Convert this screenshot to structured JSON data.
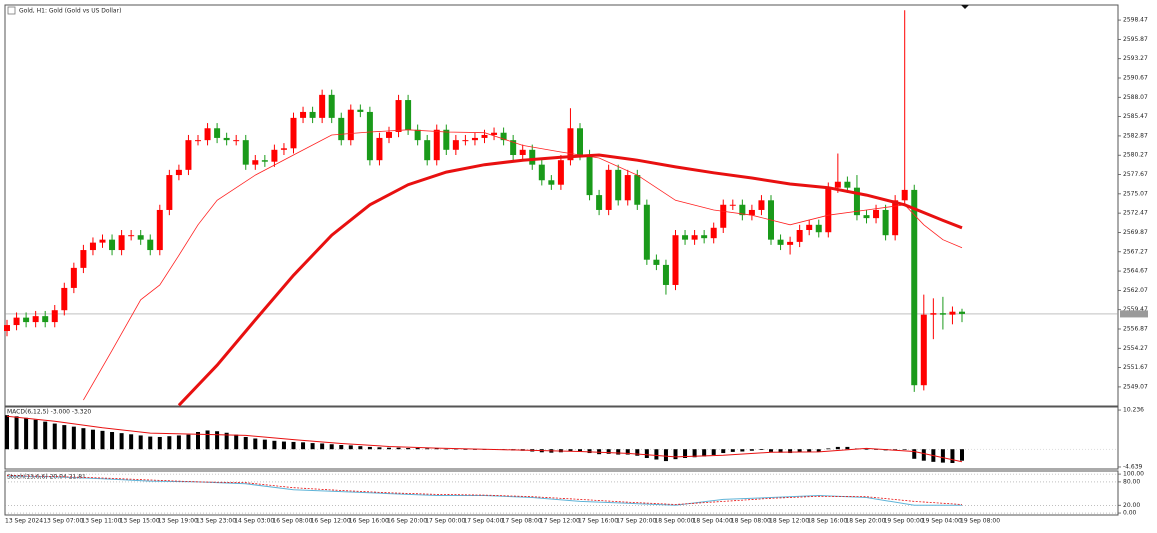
{
  "chart_data": [
    {
      "type": "candlestick",
      "title": "Gold, H1: Gold (Gold vs US Dollar)",
      "up_color": "#ff0000",
      "down_color": "#1a9a1a",
      "grid": false,
      "categories": [
        "13 Sep 2024",
        null,
        null,
        null,
        "13 Sep 07:00",
        null,
        null,
        null,
        "13 Sep 11:00",
        null,
        null,
        null,
        "13 Sep 15:00",
        null,
        null,
        null,
        "13 Sep 19:00",
        null,
        null,
        null,
        "13 Sep 23:00",
        null,
        null,
        null,
        "14 Sep 03:00",
        null,
        null,
        null,
        "16 Sep 08:00",
        null,
        null,
        null,
        "16 Sep 12:00",
        null,
        null,
        null,
        "16 Sep 16:00",
        null,
        null,
        null,
        "16 Sep 20:00",
        null,
        null,
        null,
        "17 Sep 00:00",
        null,
        null,
        null,
        "17 Sep 04:00",
        null,
        null,
        null,
        "17 Sep 08:00",
        null,
        null,
        null,
        "17 Sep 12:00",
        null,
        null,
        null,
        "17 Sep 16:00",
        null,
        null,
        null,
        "17 Sep 20:00",
        null,
        null,
        null,
        "18 Sep 00:00",
        null,
        null,
        null,
        "18 Sep 04:00",
        null,
        null,
        null,
        "18 Sep 08:00",
        null,
        null,
        null,
        "18 Sep 12:00",
        null,
        null,
        null,
        "18 Sep 16:00",
        null,
        null,
        null,
        "18 Sep 20:00",
        null,
        null,
        null,
        "19 Sep 00:00",
        null,
        null,
        null,
        "19 Sep 04:00",
        null,
        null,
        null,
        "19 Sep 08:00"
      ],
      "open": [
        2556.6,
        2557.4,
        2558.4,
        2557.8,
        2558.6,
        2557.8,
        2559.4,
        2562.4,
        2565.1,
        2567.5,
        2568.5,
        2568.9,
        2567.5,
        2569.5,
        2569.5,
        2568.9,
        2567.5,
        2572.9,
        2577.6,
        2578.3,
        2582.3,
        2582.3,
        2583.9,
        2582.6,
        2582.3,
        2582.3,
        2579.0,
        2579.6,
        2579.4,
        2581.0,
        2581.2,
        2585.3,
        2586.1,
        2585.3,
        2588.4,
        2585.3,
        2582.3,
        2586.4,
        2586.1,
        2579.6,
        2582.6,
        2583.4,
        2587.7,
        2583.7,
        2582.3,
        2579.6,
        2583.7,
        2581.0,
        2582.3,
        2582.3,
        2582.6,
        2583.0,
        2583.3,
        2582.3,
        2580.3,
        2581.0,
        2579.0,
        2576.9,
        2576.3,
        2579.6,
        2583.9,
        2580.3,
        2574.9,
        2572.9,
        2578.3,
        2574.2,
        2577.6,
        2573.6,
        2566.2,
        2565.5,
        2562.8,
        2569.5,
        2568.9,
        2569.5,
        2569.1,
        2570.5,
        2573.6,
        2573.6,
        2572.2,
        2572.9,
        2574.2,
        2568.9,
        2568.2,
        2568.6,
        2570.2,
        2570.9,
        2569.9,
        2575.9,
        2576.7,
        2575.9,
        2572.2,
        2571.8,
        2572.9,
        2569.5,
        2574.2,
        2575.6,
        2549.3,
        2558.8,
        2559.0,
        2558.8,
        2559.2
      ],
      "high": [
        2558.1,
        2559.1,
        2559.1,
        2559.3,
        2559.3,
        2560.1,
        2563.1,
        2565.8,
        2568.2,
        2569.2,
        2569.6,
        2569.6,
        2570.2,
        2570.2,
        2570.2,
        2569.6,
        2573.6,
        2578.3,
        2579.0,
        2583.0,
        2583.0,
        2584.6,
        2584.6,
        2583.3,
        2583.0,
        2583.0,
        2580.3,
        2580.3,
        2581.7,
        2581.9,
        2586.0,
        2586.8,
        2586.8,
        2589.1,
        2589.1,
        2586.0,
        2587.1,
        2587.1,
        2586.8,
        2583.3,
        2584.1,
        2588.4,
        2588.4,
        2584.4,
        2583.0,
        2584.4,
        2584.4,
        2583.0,
        2583.0,
        2583.3,
        2583.7,
        2584.0,
        2584.0,
        2583.0,
        2581.7,
        2581.7,
        2579.7,
        2577.6,
        2580.3,
        2586.6,
        2584.6,
        2581.0,
        2575.6,
        2579.0,
        2579.0,
        2578.3,
        2578.3,
        2574.3,
        2566.9,
        2566.2,
        2570.2,
        2570.2,
        2570.2,
        2570.2,
        2571.2,
        2574.3,
        2574.3,
        2574.3,
        2573.6,
        2574.9,
        2574.9,
        2569.6,
        2569.3,
        2570.9,
        2571.6,
        2571.6,
        2576.6,
        2580.5,
        2577.4,
        2577.6,
        2572.9,
        2573.6,
        2573.6,
        2574.9,
        2599.8,
        2576.3,
        2561.5,
        2561.0,
        2561.2,
        2559.9,
        2559.6
      ],
      "low": [
        2555.9,
        2556.7,
        2557.1,
        2557.1,
        2557.1,
        2557.1,
        2558.7,
        2561.7,
        2564.4,
        2566.8,
        2567.8,
        2566.8,
        2566.8,
        2568.8,
        2568.2,
        2566.8,
        2566.8,
        2572.2,
        2576.9,
        2577.6,
        2581.6,
        2581.6,
        2581.9,
        2581.6,
        2581.6,
        2578.3,
        2578.3,
        2578.7,
        2578.7,
        2580.3,
        2580.5,
        2584.6,
        2584.6,
        2584.6,
        2584.6,
        2581.6,
        2581.6,
        2585.4,
        2578.9,
        2578.9,
        2581.9,
        2582.7,
        2583.0,
        2581.6,
        2578.9,
        2578.9,
        2580.3,
        2580.3,
        2581.6,
        2581.6,
        2581.9,
        2582.3,
        2581.6,
        2579.6,
        2579.6,
        2578.3,
        2576.2,
        2575.6,
        2575.6,
        2578.9,
        2579.6,
        2574.2,
        2572.2,
        2572.2,
        2573.5,
        2573.5,
        2572.9,
        2565.5,
        2564.8,
        2561.5,
        2562.1,
        2568.2,
        2568.2,
        2568.4,
        2568.4,
        2569.8,
        2572.9,
        2571.5,
        2571.5,
        2572.2,
        2568.2,
        2567.5,
        2566.9,
        2567.9,
        2569.5,
        2569.2,
        2569.2,
        2575.2,
        2575.2,
        2571.5,
        2571.1,
        2571.1,
        2568.8,
        2568.8,
        2573.5,
        2548.4,
        2548.6,
        2555.5,
        2556.8,
        2557.5,
        2557.8
      ],
      "close": [
        2557.4,
        2558.4,
        2557.8,
        2558.6,
        2557.8,
        2559.4,
        2562.4,
        2565.1,
        2567.5,
        2568.5,
        2568.9,
        2567.5,
        2569.5,
        2569.5,
        2568.9,
        2567.5,
        2572.9,
        2577.6,
        2578.3,
        2582.3,
        2582.3,
        2583.9,
        2582.6,
        2582.3,
        2582.3,
        2579.0,
        2579.6,
        2579.4,
        2581.0,
        2581.2,
        2585.3,
        2586.1,
        2585.3,
        2588.4,
        2585.3,
        2582.3,
        2586.4,
        2586.1,
        2579.6,
        2582.6,
        2583.4,
        2587.7,
        2583.7,
        2582.3,
        2579.6,
        2583.7,
        2581.0,
        2582.3,
        2582.3,
        2582.6,
        2583.0,
        2583.3,
        2582.3,
        2580.3,
        2581.0,
        2579.0,
        2576.9,
        2576.3,
        2579.6,
        2583.9,
        2580.3,
        2574.9,
        2572.9,
        2578.3,
        2574.2,
        2577.6,
        2573.6,
        2566.2,
        2565.5,
        2562.8,
        2569.5,
        2568.9,
        2569.5,
        2569.1,
        2570.5,
        2573.6,
        2573.6,
        2572.2,
        2572.9,
        2574.2,
        2568.9,
        2568.2,
        2568.6,
        2570.2,
        2570.9,
        2569.9,
        2575.9,
        2576.7,
        2575.9,
        2572.2,
        2571.8,
        2572.9,
        2569.5,
        2574.2,
        2575.6,
        2549.3,
        2558.8,
        2559.0,
        2558.8,
        2559.2,
        2558.9
      ],
      "lines": [
        {
          "color": "#ff2020",
          "width": 0.8,
          "x": [
            8,
            11,
            14,
            16,
            18,
            20,
            22,
            26,
            30,
            34,
            38,
            42,
            46,
            50,
            54,
            58,
            62,
            66,
            70,
            74,
            78,
            82,
            86,
            90,
            94,
            96,
            98,
            100
          ],
          "values": [
            2547.3,
            2554.0,
            2560.8,
            2562.8,
            2566.8,
            2570.9,
            2574.2,
            2577.6,
            2580.3,
            2583.0,
            2583.4,
            2583.7,
            2583.4,
            2583.3,
            2581.6,
            2580.7,
            2579.9,
            2577.6,
            2574.2,
            2572.9,
            2572.2,
            2570.9,
            2572.2,
            2572.9,
            2573.6,
            2570.9,
            2568.9,
            2567.8
          ]
        },
        {
          "color": "#e81010",
          "width": 3,
          "x": [
            18,
            22,
            26,
            30,
            34,
            38,
            42,
            46,
            50,
            54,
            58,
            62,
            66,
            70,
            74,
            78,
            82,
            86,
            90,
            94,
            98,
            100
          ],
          "values": [
            2546.6,
            2552.0,
            2558.1,
            2564.1,
            2569.5,
            2573.6,
            2576.3,
            2578.0,
            2579.0,
            2579.6,
            2580.0,
            2580.3,
            2579.6,
            2578.7,
            2577.9,
            2577.2,
            2576.4,
            2575.9,
            2574.9,
            2573.6,
            2571.5,
            2570.5
          ]
        }
      ],
      "ylim": [
        2546.5,
        2600.5
      ],
      "yticks": [
        2598.47,
        2595.87,
        2593.27,
        2590.67,
        2588.07,
        2585.47,
        2582.87,
        2580.27,
        2577.67,
        2575.07,
        2572.47,
        2569.87,
        2567.27,
        2564.67,
        2562.07,
        2559.47,
        2556.87,
        2554.27,
        2551.67,
        2549.07
      ]
    },
    {
      "type": "macd",
      "title": "MACD(6,12,5) -3.000 -3.320",
      "bar_color": "#000000",
      "values": [
        8.9,
        8.6,
        8.2,
        7.7,
        7.2,
        6.7,
        6.3,
        5.9,
        5.5,
        5.1,
        4.8,
        4.5,
        4.2,
        3.9,
        3.6,
        3.3,
        3.2,
        3.4,
        3.6,
        3.8,
        4.5,
        4.9,
        4.7,
        4.3,
        3.8,
        3.2,
        2.8,
        2.5,
        2.2,
        2.0,
        1.9,
        1.8,
        1.6,
        1.5,
        1.3,
        1.1,
        1.0,
        0.8,
        0.6,
        0.5,
        0.4,
        0.4,
        0.3,
        0.3,
        0.2,
        0.2,
        0.1,
        0.1,
        0.0,
        0.0,
        -0.1,
        -0.1,
        -0.2,
        -0.3,
        -0.4,
        -0.6,
        -0.8,
        -0.9,
        -0.8,
        -0.6,
        -0.7,
        -1.0,
        -1.3,
        -1.2,
        -1.4,
        -1.4,
        -1.7,
        -2.3,
        -2.7,
        -3.1,
        -2.6,
        -2.3,
        -2.1,
        -1.9,
        -1.5,
        -1.0,
        -0.7,
        -0.6,
        -0.4,
        -0.2,
        -0.7,
        -0.9,
        -1.0,
        -0.8,
        -0.6,
        -0.6,
        0.2,
        0.6,
        0.6,
        0.2,
        0.0,
        0.0,
        -0.3,
        -0.1,
        0.0,
        -2.5,
        -3.0,
        -3.3,
        -3.5,
        -3.6,
        -3.0
      ],
      "lines": [
        {
          "color": "#e81010",
          "width": 1,
          "x": [
            0,
            5,
            10,
            15,
            20,
            25,
            30,
            35,
            40,
            45,
            50,
            55,
            60,
            65,
            70,
            75,
            80,
            85,
            90,
            95,
            100
          ],
          "values": [
            8.6,
            7.3,
            5.6,
            4.2,
            3.9,
            3.6,
            2.5,
            1.5,
            0.7,
            0.3,
            0.0,
            -0.3,
            -0.6,
            -1.1,
            -2.0,
            -1.6,
            -0.8,
            -0.7,
            0.2,
            -0.6,
            -3.3
          ]
        }
      ],
      "ylim": [
        -5.17,
        11.03
      ],
      "yticks": [
        10.236,
        -4.639
      ],
      "grid": false
    },
    {
      "type": "stoch",
      "title": "Stoch(13,6,6) 20.04 21.81",
      "lines": [
        {
          "color": "#5fb4d8",
          "width": 1,
          "x": [
            0,
            5,
            10,
            15,
            20,
            25,
            30,
            35,
            40,
            45,
            50,
            55,
            60,
            65,
            70,
            75,
            80,
            85,
            90,
            95,
            100
          ],
          "values": [
            95,
            93,
            88,
            82,
            80,
            75,
            60,
            55,
            50,
            45,
            45,
            40,
            30,
            25,
            20,
            35,
            40,
            45,
            40,
            20,
            20
          ]
        },
        {
          "color": "#e81010",
          "width": 0.8,
          "dash": true,
          "x": [
            0,
            5,
            10,
            15,
            20,
            25,
            30,
            35,
            40,
            45,
            50,
            55,
            60,
            65,
            70,
            75,
            80,
            85,
            90,
            95,
            100
          ],
          "values": [
            96,
            94,
            90,
            85,
            80,
            78,
            65,
            58,
            52,
            48,
            46,
            42,
            35,
            28,
            22,
            30,
            38,
            43,
            42,
            30,
            22
          ]
        }
      ],
      "ylim": [
        -5,
        108
      ],
      "yticks": [
        {
          "value": 100,
          "label": "100.00"
        },
        {
          "value": 80,
          "label": "80.00"
        },
        {
          "value": 20,
          "label": "20.00"
        },
        {
          "value": 0,
          "label": "0.00"
        }
      ],
      "grid": true
    }
  ]
}
